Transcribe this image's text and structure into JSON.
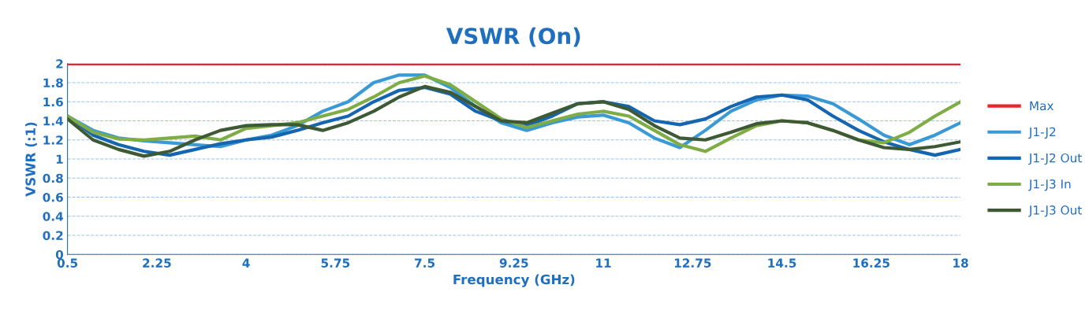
{
  "chart_data": {
    "type": "line",
    "title": "VSWR (On)",
    "xlabel": "Frequency (GHz)",
    "ylabel": "VSWR (:1)",
    "x": [
      0.5,
      1,
      1.5,
      2,
      2.5,
      3,
      3.5,
      4,
      4.5,
      5,
      5.5,
      6,
      6.5,
      7,
      7.5,
      8,
      8.5,
      9,
      9.5,
      10,
      10.5,
      11,
      11.5,
      12,
      12.5,
      13,
      13.5,
      14,
      14.5,
      15,
      15.5,
      16,
      16.5,
      17,
      17.5,
      18
    ],
    "series": [
      {
        "name": "Max",
        "color": "#e8262b",
        "x": [
          0.5,
          18
        ],
        "values": [
          2,
          2
        ]
      },
      {
        "name": "J1-J2",
        "color": "#3a9ad6",
        "values": [
          1.45,
          1.3,
          1.22,
          1.19,
          1.17,
          1.15,
          1.13,
          1.2,
          1.25,
          1.35,
          1.5,
          1.6,
          1.8,
          1.88,
          1.88,
          1.75,
          1.55,
          1.38,
          1.3,
          1.38,
          1.44,
          1.46,
          1.38,
          1.22,
          1.12,
          1.3,
          1.5,
          1.62,
          1.67,
          1.66,
          1.58,
          1.42,
          1.25,
          1.15,
          1.25,
          1.38
        ]
      },
      {
        "name": "J1-J2 Out",
        "color": "#1565b0",
        "values": [
          1.45,
          1.25,
          1.15,
          1.08,
          1.04,
          1.1,
          1.16,
          1.2,
          1.23,
          1.3,
          1.38,
          1.45,
          1.6,
          1.72,
          1.75,
          1.68,
          1.5,
          1.4,
          1.35,
          1.45,
          1.58,
          1.6,
          1.55,
          1.4,
          1.36,
          1.42,
          1.55,
          1.65,
          1.67,
          1.62,
          1.45,
          1.3,
          1.18,
          1.1,
          1.04,
          1.1
        ]
      },
      {
        "name": "J1-J3 In",
        "color": "#7fad45",
        "values": [
          1.45,
          1.28,
          1.21,
          1.2,
          1.22,
          1.24,
          1.2,
          1.32,
          1.35,
          1.38,
          1.45,
          1.52,
          1.65,
          1.8,
          1.87,
          1.78,
          1.6,
          1.42,
          1.33,
          1.4,
          1.47,
          1.5,
          1.45,
          1.3,
          1.15,
          1.08,
          1.22,
          1.35,
          1.4,
          1.38,
          1.3,
          1.2,
          1.17,
          1.28,
          1.45,
          1.6
        ]
      },
      {
        "name": "J1-J3 Out",
        "color": "#3e5a34",
        "values": [
          1.42,
          1.2,
          1.1,
          1.03,
          1.08,
          1.2,
          1.3,
          1.35,
          1.36,
          1.36,
          1.3,
          1.38,
          1.5,
          1.65,
          1.76,
          1.7,
          1.55,
          1.4,
          1.38,
          1.48,
          1.58,
          1.6,
          1.52,
          1.35,
          1.22,
          1.2,
          1.28,
          1.37,
          1.4,
          1.38,
          1.3,
          1.2,
          1.12,
          1.1,
          1.13,
          1.18
        ]
      }
    ],
    "xlim": [
      0.5,
      18
    ],
    "xticks": [
      0.5,
      2.25,
      4,
      5.75,
      7.5,
      9.25,
      11,
      12.75,
      14.5,
      16.25,
      18
    ],
    "ylim": [
      0,
      2
    ],
    "yticks": [
      0,
      0.2,
      0.4,
      0.6,
      0.8,
      1,
      1.2,
      1.4,
      1.6,
      1.8,
      2
    ],
    "grid": "y",
    "legend": "right",
    "marker": "none",
    "line_style": "solid"
  }
}
